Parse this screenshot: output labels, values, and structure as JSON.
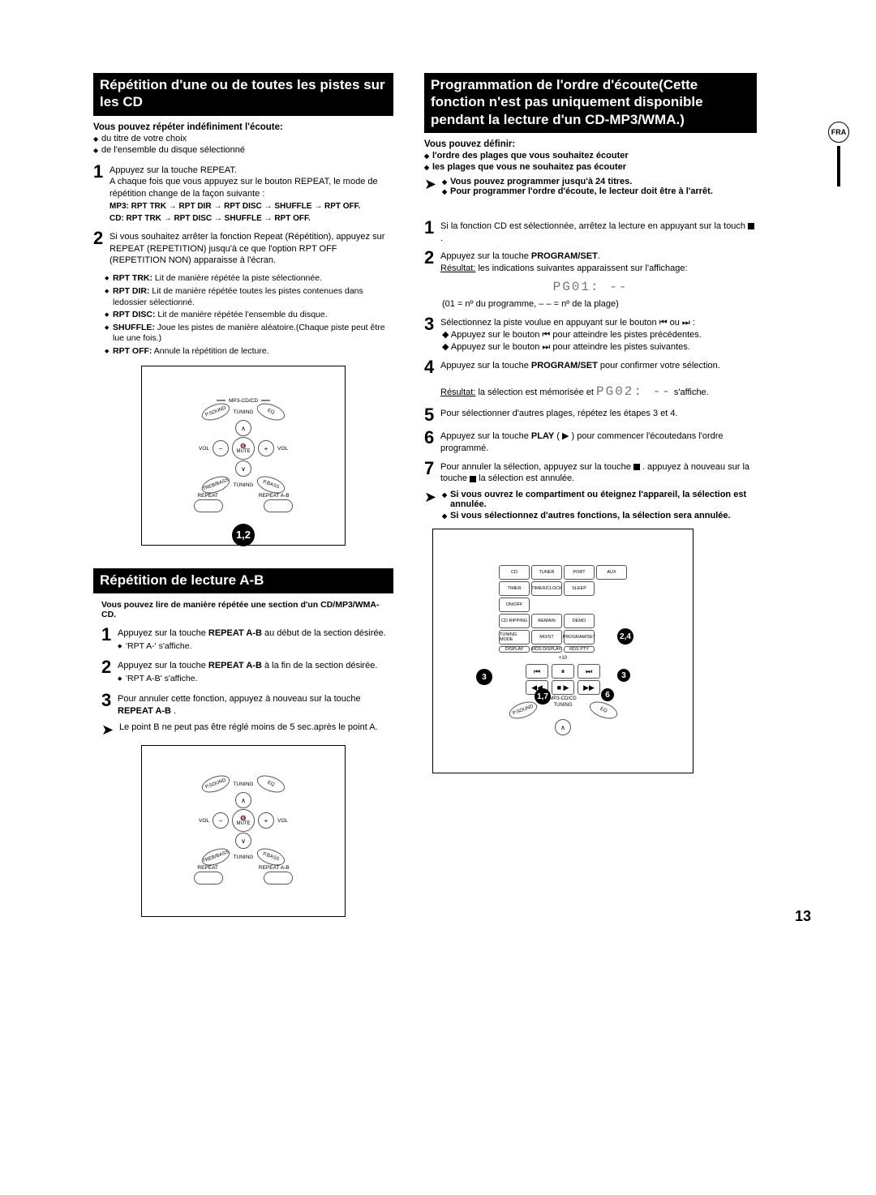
{
  "page_number": "13",
  "fra_label": "FRA",
  "left": {
    "section1_title": "Répétition d'une ou de toutes les pistes sur les CD",
    "lead": "Vous pouvez répéter indéfiniment l'écoute:",
    "bullets": [
      "du titre de votre choix",
      "de l'ensemble du disque sélectionné"
    ],
    "steps": [
      {
        "num": "1",
        "text": "Appuyez sur la touche REPEAT.\nA chaque fois que vous appuyez sur le bouton REPEAT, le mode de répétition change de la façon suivante :",
        "bold_lines": [
          "MP3:  RPT TRK → RPT DIR  → RPT DISC  → SHUFFLE → RPT OFF.",
          "CD:  RPT TRK → RPT DISC → SHUFFLE → RPT OFF."
        ]
      },
      {
        "num": "2",
        "text": "Si vous souhaitez arrêter la fonction Repeat (Répétition), appuyez sur REPEAT (REPETITION) jusqu'à ce que l'option RPT OFF (REPETITION NON) apparaisse à l'écran."
      }
    ],
    "sub_bullets": [
      {
        "bold": "RPT TRK:",
        "rest": " Lit de manière répétée la piste sélectionnée."
      },
      {
        "bold": "RPT DIR:",
        "rest": " Lit de manière répétée toutes les pistes contenues  dans ledossier sélectionné."
      },
      {
        "bold": "RPT DISC:",
        "rest": " Lit de manière répétée l'ensemble du disque."
      },
      {
        "bold": "SHUFFLE:",
        "rest": " Joue les pistes de manière aléatoire.(Chaque piste peut être lue une fois.)"
      },
      {
        "bold": "RPT OFF:",
        "rest": " Annule la répétition de lecture."
      }
    ],
    "remote1_label": "1,2",
    "remote_labels": {
      "top": "MP3-CD/CD",
      "tuning": "TUNING",
      "psound": "P.SOUND",
      "eq": "EQ",
      "vol_minus": "VOL",
      "vol_plus": "VOL",
      "mute": "MUTE",
      "trebbass": "TREB/BASS",
      "pbass": "P.BASS",
      "repeat": "REPEAT",
      "repeat_ab": "REPEAT A-B"
    },
    "section2_title": "Répétition de lecture A-B",
    "section2_lead": "Vous pouvez lire de manière répétée une section d'un CD/MP3/WMA-CD.",
    "section2_steps": [
      {
        "num": "1",
        "text_a": "Appuyez sur la touche ",
        "text_bold": "REPEAT A-B",
        "text_b": " au début de la section désirée.",
        "sub": "'RPT A-' s'affiche."
      },
      {
        "num": "2",
        "text_a": "Appuyez sur la touche ",
        "text_bold": "REPEAT A-B",
        "text_b": " à la fin de la section désirée.",
        "sub": "'RPT A-B' s'affiche."
      },
      {
        "num": "3",
        "text_a": "Pour annuler cette fonction, appuyez à nouveau sur la touche ",
        "text_bold": "REPEAT A-B",
        "text_b": " ."
      }
    ],
    "section2_note": "Le point B ne peut pas être réglé moins de 5 sec.après le point A."
  },
  "right": {
    "section_title": "Programmation de l'ordre d'écoute(Cette fonction n'est pas uniquement disponible pendant la lecture d'un CD-MP3/WMA.)",
    "lead": "Vous pouvez définir:",
    "bullets_bold": [
      "l'ordre des plages que vous souhaitez écouter",
      "les plages que vous ne souhaitez pas écouter"
    ],
    "arrow_bullets": [
      "Vous pouvez programmer jusqu'à 24 titres.",
      "Pour programmer l'ordre d'écoute, le lecteur doit être à l'arrêt."
    ],
    "steps": [
      {
        "num": "1",
        "html": "Si la fonction CD est sélectionnée, arrêtez la lecture en appuyant sur la touch <span class='stop-sq'></span> ."
      },
      {
        "num": "2",
        "html": "Appuyez sur la touche <b>PROGRAM/SET</b>.<br><span class='underline'>Résultat:</span> les indications suivantes apparaissent sur l'affichage:"
      }
    ],
    "seven_seg_1": "PG01: --",
    "program_note": "(01 = nº du programme, – – = nº de la plage)",
    "steps2": [
      {
        "num": "3",
        "html": "Sélectionnez la piste voulue en appuyant sur le bouton  ⏮ ou ⏭ :<br><span style='display:inline-block;margin-left:2px'>◆ Appuyez sur le bouton ⏮  pour atteindre les pistes précédentes.<br>◆ Appuyez sur le bouton ⏭  pour atteindre les pistes suivantes.</span>"
      },
      {
        "num": "4",
        "html": "Appuyez sur la touche <b>PROGRAM/SET</b> pour confirmer votre sélection.<br><br><span class='underline'>Résultat:</span> la sélection est mémorisée et   <span class='seven-seg'>PG02: --</span>    s'affiche."
      },
      {
        "num": "5",
        "html": "Pour sélectionner d'autres plages, répétez les étapes 3 et 4."
      },
      {
        "num": "6",
        "html": "Appuyez sur la touche <b>PLAY</b> ( ▶ ) pour commencer l'écoutedans l'ordre programmé."
      },
      {
        "num": "7",
        "html": "Pour annuler la sélection, appuyez sur la touche  <span class='stop-sq'></span> . appuyez à nouveau sur la touche  <span class='stop-sq'></span>  la sélection est annulée."
      }
    ],
    "final_notes": [
      "Si vous ouvrez le compartiment ou éteignez l'appareil, la sélection est annulée.",
      "Si vous sélectionnez d'autres fonctions, la sélection sera annulée."
    ],
    "remote2": {
      "row1": [
        "CD",
        "TUNER",
        "PORT",
        "AUX"
      ],
      "row2": [
        "TIMER",
        "TIMER/CLOCK",
        "SLEEP",
        ""
      ],
      "row3": [
        "ON/OFF",
        "",
        "",
        ""
      ],
      "row4": [
        "CD RIPPING",
        "REMAIN",
        "DEMO",
        ""
      ],
      "row5": [
        "TUNING MODE",
        "MO/ST",
        "PROGRAM/SET",
        ""
      ],
      "row6": [
        "DISPLAY",
        "RDS DISPLAY",
        "RDS PTY",
        ""
      ],
      "plus10": "+10",
      "mp3cd": "MP3-CD/CD",
      "tuning": "TUNING",
      "psound": "P.SOUND",
      "eq": "EQ",
      "labels": {
        "l24": "2,4",
        "l3a": "3",
        "l3b": "3",
        "l17": "1,7",
        "l6": "6"
      }
    }
  }
}
